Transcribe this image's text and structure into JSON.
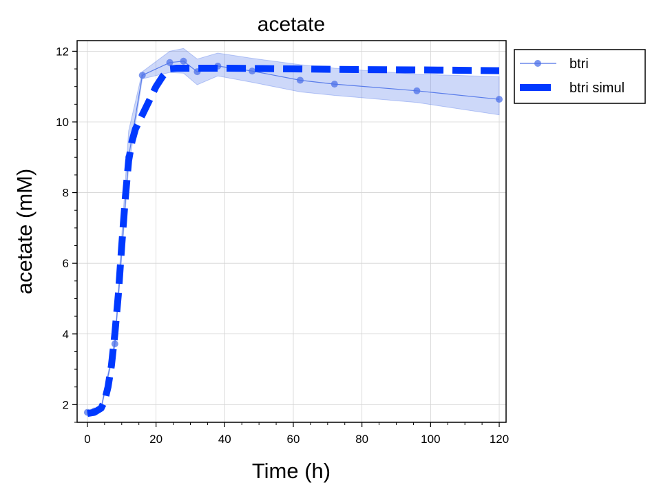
{
  "chart_data": {
    "type": "line",
    "title": "acetate",
    "xlabel": "Time (h)",
    "ylabel": "acetate (mM)",
    "xlim": [
      -3,
      122
    ],
    "ylim": [
      1.5,
      12.3
    ],
    "xticks": [
      0,
      20,
      40,
      60,
      80,
      100,
      120
    ],
    "yticks": [
      2,
      4,
      6,
      8,
      10,
      12
    ],
    "grid": true,
    "legend_position": "outside-top-right",
    "series": [
      {
        "name": "btri",
        "style": "line-markers",
        "color": "#4d72e8",
        "x": [
          0,
          2,
          4,
          8,
          12,
          16,
          24,
          28,
          32,
          38,
          48,
          62,
          72,
          96,
          120
        ],
        "y": [
          1.78,
          1.82,
          1.9,
          3.72,
          9.0,
          11.32,
          11.68,
          11.72,
          11.42,
          11.58,
          11.44,
          11.18,
          11.07,
          10.88,
          10.64
        ],
        "band_lower": [
          1.74,
          1.78,
          1.85,
          3.62,
          8.7,
          11.22,
          11.4,
          11.38,
          11.05,
          11.3,
          11.12,
          10.85,
          10.75,
          10.55,
          10.2
        ],
        "band_upper": [
          1.82,
          1.86,
          1.95,
          3.82,
          9.75,
          11.42,
          12.0,
          12.08,
          11.78,
          11.95,
          11.8,
          11.62,
          11.52,
          11.35,
          11.28
        ]
      },
      {
        "name": "btri simul",
        "style": "dashed",
        "color": "#0039ff",
        "x": [
          0,
          2,
          4,
          5,
          6,
          7,
          8,
          9,
          10,
          11,
          12,
          13,
          14,
          16,
          18,
          20,
          22,
          24,
          26,
          28,
          30,
          40,
          60,
          80,
          100,
          120
        ],
        "y": [
          1.75,
          1.78,
          1.9,
          2.1,
          2.5,
          3.1,
          4.0,
          5.1,
          6.5,
          7.8,
          8.9,
          9.45,
          9.8,
          10.2,
          10.6,
          11.0,
          11.3,
          11.5,
          11.52,
          11.52,
          11.52,
          11.52,
          11.5,
          11.48,
          11.47,
          11.45
        ]
      }
    ]
  }
}
